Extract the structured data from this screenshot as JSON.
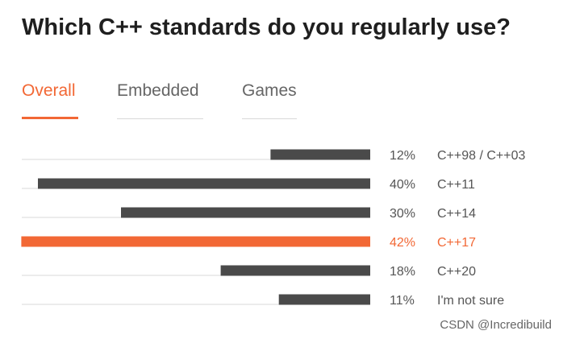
{
  "title": "Which C++ standards do you regularly use?",
  "tabs": [
    {
      "label": "Overall",
      "active": true
    },
    {
      "label": "Embedded",
      "active": false
    },
    {
      "label": "Games",
      "active": false
    }
  ],
  "colors": {
    "bar": "#4a4a4a",
    "highlight": "#f26835",
    "track": "#d9d9d9"
  },
  "chart_data": {
    "type": "bar",
    "orientation": "horizontal",
    "categories": [
      "C++98 / C++03",
      "C++11",
      "C++14",
      "C++17",
      "C++20",
      "I'm not sure"
    ],
    "values": [
      12,
      40,
      30,
      42,
      18,
      11
    ],
    "value_labels": [
      "12%",
      "40%",
      "30%",
      "42%",
      "18%",
      "11%"
    ],
    "highlighted_category": "C++17",
    "xlim": [
      0,
      100
    ],
    "unit": "%"
  },
  "watermark": "CSDN @Incredibuild"
}
